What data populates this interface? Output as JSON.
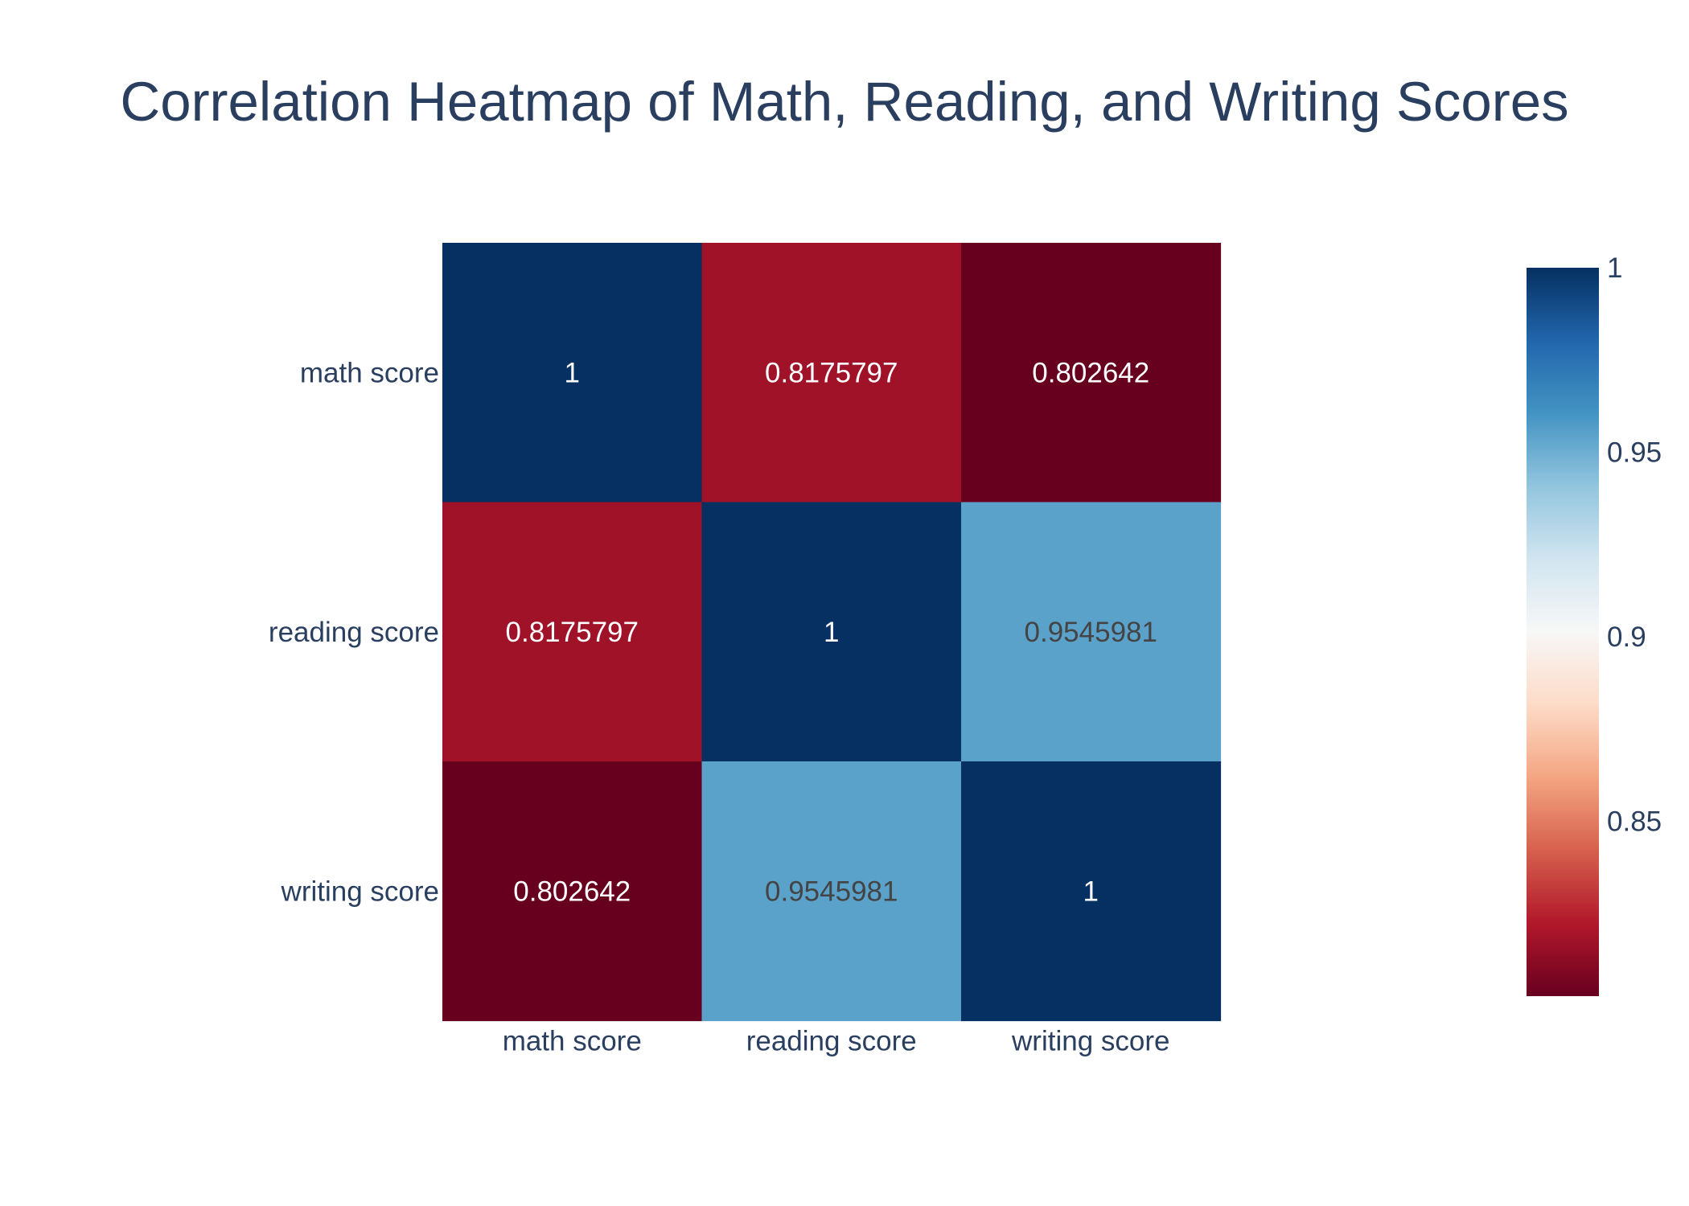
{
  "chart_data": {
    "type": "heatmap",
    "title": "Correlation Heatmap of Math, Reading, and Writing Scores",
    "x_categories": [
      "math score",
      "reading score",
      "writing score"
    ],
    "y_categories": [
      "math score",
      "reading score",
      "writing score"
    ],
    "values": [
      [
        1,
        0.8175797,
        0.802642
      ],
      [
        0.8175797,
        1,
        0.9545981
      ],
      [
        0.802642,
        0.9545981,
        1
      ]
    ],
    "cell_labels": [
      [
        "1",
        "0.8175797",
        "0.802642"
      ],
      [
        "0.8175797",
        "1",
        "0.9545981"
      ],
      [
        "0.802642",
        "0.9545981",
        "1"
      ]
    ],
    "colorscale": {
      "name": "RdBu",
      "min": 0.802642,
      "max": 1,
      "stops": [
        [
          0,
          "#67001f"
        ],
        [
          0.1,
          "#b2182b"
        ],
        [
          0.2,
          "#d6604d"
        ],
        [
          0.3,
          "#f4a582"
        ],
        [
          0.4,
          "#fddbc7"
        ],
        [
          0.5,
          "#f7f7f7"
        ],
        [
          0.6,
          "#d1e5f0"
        ],
        [
          0.7,
          "#92c5de"
        ],
        [
          0.8,
          "#4393c3"
        ],
        [
          0.9,
          "#2166ac"
        ],
        [
          1,
          "#053061"
        ]
      ],
      "ticks": [
        0.85,
        0.9,
        0.95,
        1
      ],
      "tick_labels": [
        "0.85",
        "0.9",
        "0.95",
        "1"
      ]
    },
    "colors": {
      "text": "#2a3f5f",
      "cell_text_dark_bg": "#ffffff",
      "cell_text_light_bg": "#444444"
    }
  }
}
